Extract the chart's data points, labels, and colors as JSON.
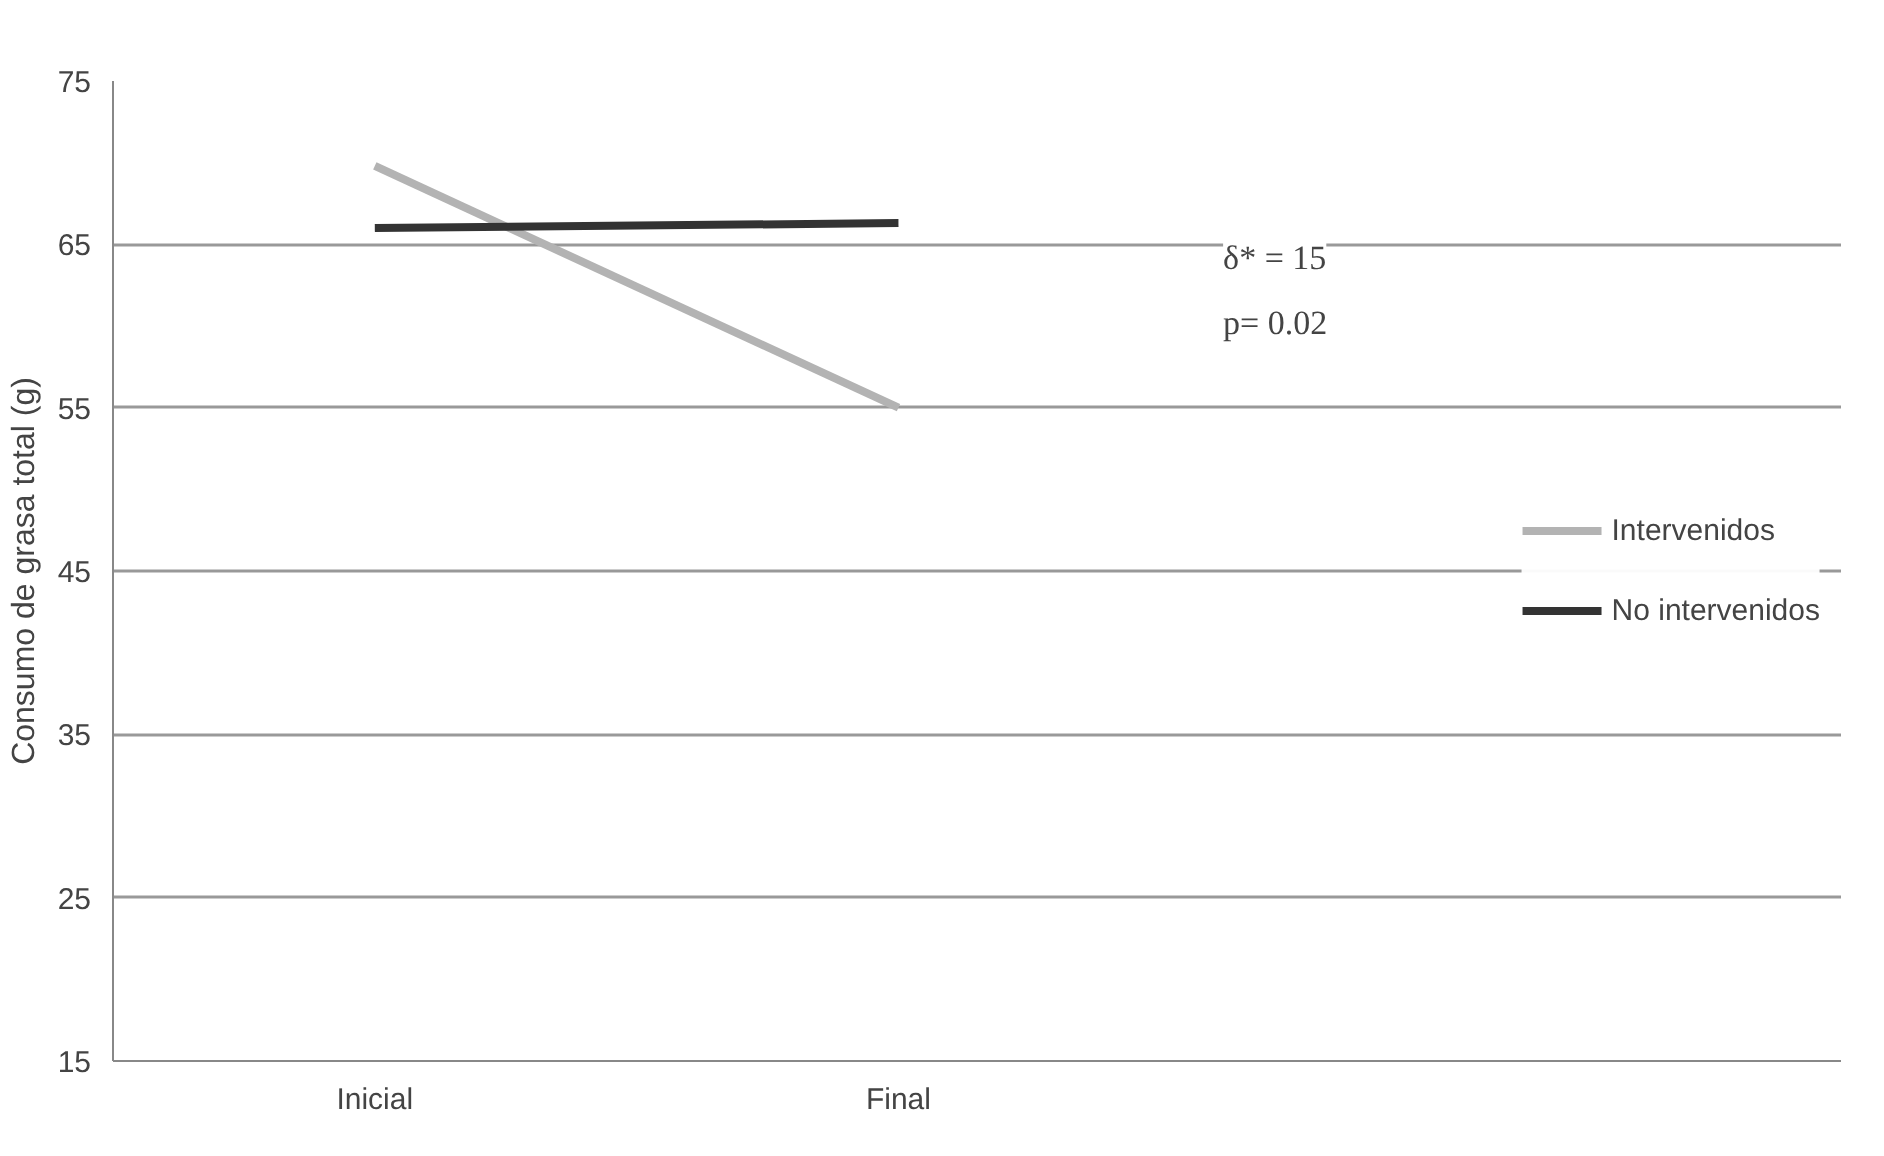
{
  "chart_data": {
    "type": "line",
    "categories": [
      "Inicial",
      "Final"
    ],
    "series": [
      {
        "name": "Intervenidos",
        "color": "#b3b3b3",
        "values": [
          69.8,
          55
        ]
      },
      {
        "name": "No intervenidos",
        "color": "#333333",
        "values": [
          66,
          66.3
        ]
      }
    ],
    "ylabel": "Consumo de grasa total (g)",
    "ylim": [
      15,
      75
    ],
    "yticks": [
      15,
      25,
      35,
      45,
      55,
      65,
      75
    ],
    "grid": "y",
    "legend": "right",
    "marker": "none",
    "line_style": "solid",
    "annotations": [
      "δ* = 15",
      "p= 0.02"
    ]
  }
}
